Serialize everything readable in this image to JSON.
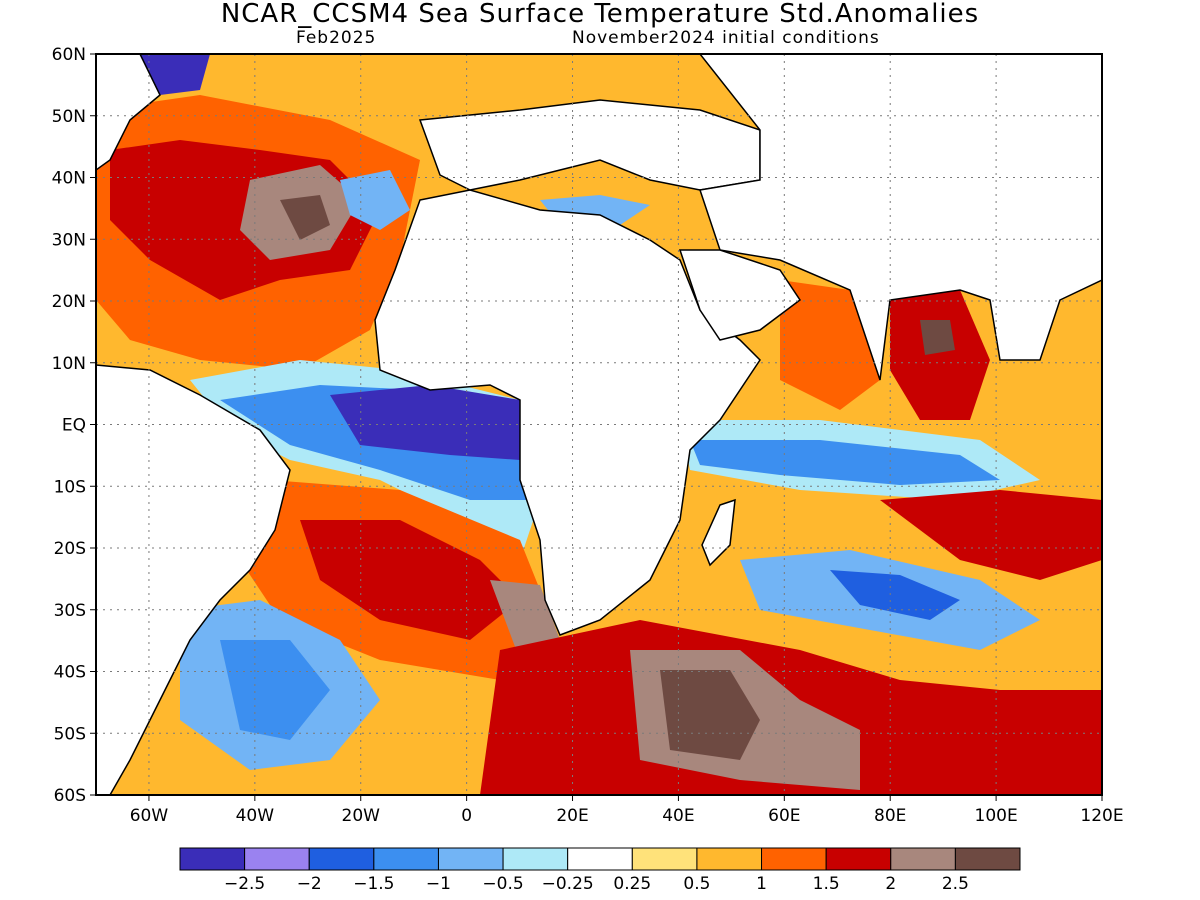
{
  "title": "NCAR_CCSM4 Sea Surface Temperature Std.Anomalies",
  "valid_month": "Feb2025",
  "initial_conditions": "November2024 initial conditions",
  "map": {
    "lon_range": [
      -70,
      120
    ],
    "lat_range": [
      -60,
      60
    ],
    "grid": "dotted",
    "lat_labels": [
      "60N",
      "50N",
      "40N",
      "30N",
      "20N",
      "10N",
      "EQ",
      "10S",
      "20S",
      "30S",
      "40S",
      "50S",
      "60S"
    ],
    "lon_labels": [
      "60W",
      "40W",
      "20W",
      "0",
      "20E",
      "40E",
      "60E",
      "80E",
      "100E",
      "120E"
    ]
  },
  "colorbar": {
    "levels": [
      "-2.5",
      "-2",
      "-1.5",
      "-1",
      "-0.5",
      "-0.25",
      "0.25",
      "0.5",
      "1",
      "1.5",
      "2",
      "2.5"
    ],
    "colors": [
      "#3a2db8",
      "#9a82f0",
      "#1f5fe0",
      "#3c8ff0",
      "#72b4f5",
      "#aee9f7",
      "#ffffff",
      "#ffe27a",
      "#ffb82e",
      "#ff6200",
      "#c80000",
      "#a8877d",
      "#6e4a42"
    ]
  }
}
